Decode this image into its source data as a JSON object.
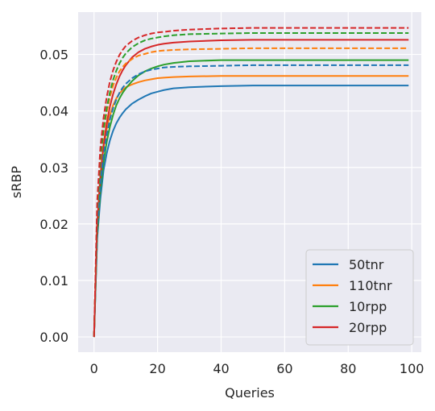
{
  "chart_data": {
    "type": "line",
    "xlabel": "Queries",
    "ylabel": "sRBP",
    "xlim": [
      -5,
      103
    ],
    "ylim": [
      -0.0027,
      0.0575
    ],
    "xticks": [
      0,
      20,
      40,
      60,
      80,
      100
    ],
    "yticks": [
      0.0,
      0.01,
      0.02,
      0.03,
      0.04,
      0.05
    ],
    "xtick_labels": [
      "0",
      "20",
      "40",
      "60",
      "80",
      "100"
    ],
    "ytick_labels": [
      "0.00",
      "0.01",
      "0.02",
      "0.03",
      "0.04",
      "0.05"
    ],
    "grid": true,
    "legend_position": "bottom-right",
    "colors": {
      "background": "#eaeaf2",
      "grid": "#ffffff",
      "50tnr": "#1f77b4",
      "110tnr": "#ff7f0e",
      "10rpp": "#2ca02c",
      "20rpp": "#d62728"
    },
    "series": [
      {
        "name": "50tnr",
        "style": "solid",
        "color": "#1f77b4",
        "x": [
          0,
          1,
          2,
          3,
          4,
          5,
          6,
          7,
          8,
          9,
          10,
          12,
          14,
          16,
          18,
          20,
          22,
          25,
          30,
          40,
          50,
          60,
          70,
          80,
          90,
          99
        ],
        "y": [
          0.0,
          0.0175,
          0.0245,
          0.0295,
          0.0325,
          0.0348,
          0.0365,
          0.0378,
          0.0388,
          0.0396,
          0.0403,
          0.0413,
          0.042,
          0.0426,
          0.0431,
          0.0434,
          0.0437,
          0.044,
          0.0442,
          0.0444,
          0.0445,
          0.0445,
          0.0445,
          0.0445,
          0.0445,
          0.0445
        ]
      },
      {
        "name": "110tnr",
        "style": "solid",
        "color": "#ff7f0e",
        "x": [
          0,
          1,
          2,
          3,
          4,
          5,
          6,
          7,
          8,
          9,
          10,
          12,
          14,
          16,
          18,
          20,
          22,
          25,
          30,
          40,
          50,
          60,
          70,
          80,
          90,
          99
        ],
        "y": [
          0.0,
          0.02,
          0.0285,
          0.0335,
          0.0368,
          0.0392,
          0.041,
          0.0422,
          0.0431,
          0.0437,
          0.0442,
          0.0447,
          0.0451,
          0.0454,
          0.0456,
          0.0458,
          0.0459,
          0.046,
          0.0461,
          0.0462,
          0.0462,
          0.0462,
          0.0462,
          0.0462,
          0.0462,
          0.0462
        ]
      },
      {
        "name": "10rpp",
        "style": "solid",
        "color": "#2ca02c",
        "x": [
          0,
          1,
          2,
          3,
          4,
          5,
          6,
          7,
          8,
          9,
          10,
          12,
          14,
          16,
          18,
          20,
          22,
          25,
          30,
          40,
          50,
          60,
          70,
          80,
          90,
          99
        ],
        "y": [
          0.0,
          0.018,
          0.026,
          0.031,
          0.0345,
          0.0372,
          0.0393,
          0.041,
          0.0422,
          0.0432,
          0.044,
          0.0453,
          0.0463,
          0.047,
          0.0475,
          0.0479,
          0.0482,
          0.0485,
          0.0488,
          0.049,
          0.049,
          0.049,
          0.049,
          0.049,
          0.049,
          0.049
        ]
      },
      {
        "name": "20rpp",
        "style": "solid",
        "color": "#d62728",
        "x": [
          0,
          1,
          2,
          3,
          4,
          5,
          6,
          7,
          8,
          9,
          10,
          12,
          14,
          16,
          18,
          20,
          22,
          25,
          30,
          40,
          50,
          60,
          70,
          80,
          90,
          99
        ],
        "y": [
          0.0,
          0.02,
          0.0285,
          0.034,
          0.0378,
          0.0408,
          0.043,
          0.0447,
          0.0461,
          0.0472,
          0.0481,
          0.0495,
          0.0504,
          0.051,
          0.0514,
          0.0517,
          0.0519,
          0.0521,
          0.0523,
          0.0525,
          0.0526,
          0.0526,
          0.0526,
          0.0526,
          0.0526,
          0.0526
        ]
      },
      {
        "name": "50tnr",
        "style": "dashed",
        "color": "#1f77b4",
        "x": [
          0,
          1,
          2,
          3,
          4,
          5,
          6,
          7,
          8,
          9,
          10,
          12,
          14,
          16,
          18,
          20,
          22,
          25,
          30,
          40,
          50,
          60,
          70,
          80,
          90,
          99
        ],
        "y": [
          0.0,
          0.019,
          0.027,
          0.0322,
          0.0358,
          0.0385,
          0.0405,
          0.042,
          0.0432,
          0.0441,
          0.0448,
          0.0458,
          0.0465,
          0.047,
          0.0473,
          0.0475,
          0.0477,
          0.0478,
          0.0479,
          0.048,
          0.0481,
          0.0481,
          0.0481,
          0.0481,
          0.0481,
          0.0481
        ]
      },
      {
        "name": "110tnr",
        "style": "dashed",
        "color": "#ff7f0e",
        "x": [
          0,
          1,
          2,
          3,
          4,
          5,
          6,
          7,
          8,
          9,
          10,
          12,
          14,
          16,
          18,
          20,
          22,
          25,
          30,
          40,
          50,
          60,
          70,
          80,
          90,
          99
        ],
        "y": [
          0.0,
          0.022,
          0.031,
          0.0362,
          0.0398,
          0.0425,
          0.0445,
          0.0459,
          0.047,
          0.0478,
          0.0484,
          0.0492,
          0.0498,
          0.0501,
          0.0504,
          0.0506,
          0.0507,
          0.0508,
          0.0509,
          0.051,
          0.0511,
          0.0511,
          0.0511,
          0.0511,
          0.0511,
          0.0511
        ]
      },
      {
        "name": "10rpp",
        "style": "dashed",
        "color": "#2ca02c",
        "x": [
          0,
          1,
          2,
          3,
          4,
          5,
          6,
          7,
          8,
          9,
          10,
          12,
          14,
          16,
          18,
          20,
          22,
          25,
          30,
          40,
          50,
          60,
          70,
          80,
          90,
          99
        ],
        "y": [
          0.0,
          0.0225,
          0.0315,
          0.0368,
          0.0405,
          0.0433,
          0.0455,
          0.0471,
          0.0484,
          0.0494,
          0.0502,
          0.0513,
          0.052,
          0.0525,
          0.0528,
          0.053,
          0.0532,
          0.0534,
          0.0536,
          0.0537,
          0.0538,
          0.0538,
          0.0538,
          0.0538,
          0.0538,
          0.0538
        ]
      },
      {
        "name": "20rpp",
        "style": "dashed",
        "color": "#d62728",
        "x": [
          0,
          1,
          2,
          3,
          4,
          5,
          6,
          7,
          8,
          9,
          10,
          12,
          14,
          16,
          18,
          20,
          22,
          25,
          30,
          40,
          50,
          60,
          70,
          80,
          90,
          99
        ],
        "y": [
          0.0,
          0.024,
          0.0335,
          0.0388,
          0.0425,
          0.0452,
          0.0472,
          0.0487,
          0.0499,
          0.0508,
          0.0515,
          0.0524,
          0.053,
          0.0534,
          0.0537,
          0.0539,
          0.054,
          0.0542,
          0.0544,
          0.0546,
          0.0547,
          0.0547,
          0.0547,
          0.0547,
          0.0547,
          0.0547
        ]
      }
    ],
    "legend": [
      "50tnr",
      "110tnr",
      "10rpp",
      "20rpp"
    ]
  }
}
